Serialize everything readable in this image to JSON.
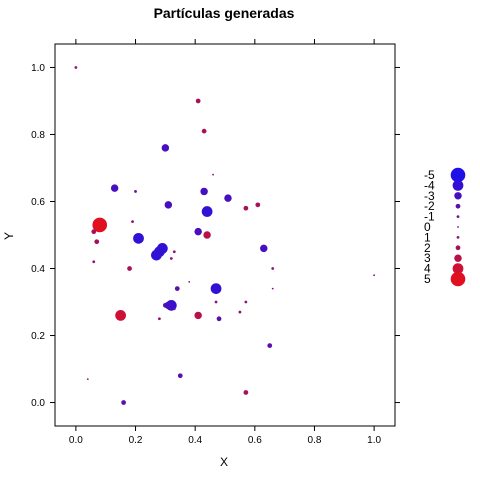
{
  "chart_data": {
    "type": "scatter",
    "title": "Partículas generadas",
    "xlabel": "X",
    "ylabel": "Y",
    "xlim": [
      -0.07,
      1.07
    ],
    "ylim": [
      -0.07,
      1.07
    ],
    "x_ticks": [
      0.0,
      0.2,
      0.4,
      0.6,
      0.8,
      1.0
    ],
    "y_ticks": [
      0.0,
      0.2,
      0.4,
      0.6,
      0.8,
      1.0
    ],
    "tick_labels": [
      "0.0",
      "0.2",
      "0.4",
      "0.6",
      "0.8",
      "1.0"
    ],
    "grid": false,
    "legend_position": "right",
    "color_low": "#1f10e8",
    "color_high": "#e01020",
    "legend": [
      {
        "label": "-5",
        "value": -5
      },
      {
        "label": "-4",
        "value": -4
      },
      {
        "label": "-3",
        "value": -3
      },
      {
        "label": "-2",
        "value": -2
      },
      {
        "label": "-1",
        "value": -1
      },
      {
        "label": "0",
        "value": 0
      },
      {
        "label": "1",
        "value": 1
      },
      {
        "label": "2",
        "value": 2
      },
      {
        "label": "3",
        "value": 3
      },
      {
        "label": "4",
        "value": 4
      },
      {
        "label": "5",
        "value": 5
      }
    ],
    "points": [
      {
        "x": 0.0,
        "y": 1.0,
        "v": 1
      },
      {
        "x": 0.41,
        "y": 0.9,
        "v": 2
      },
      {
        "x": 0.43,
        "y": 0.81,
        "v": 2
      },
      {
        "x": 0.3,
        "y": 0.76,
        "v": -3
      },
      {
        "x": 0.46,
        "y": 0.68,
        "v": 0
      },
      {
        "x": 0.13,
        "y": 0.64,
        "v": -3
      },
      {
        "x": 0.2,
        "y": 0.63,
        "v": -1
      },
      {
        "x": 0.43,
        "y": 0.63,
        "v": -3
      },
      {
        "x": 0.51,
        "y": 0.61,
        "v": -3
      },
      {
        "x": 0.31,
        "y": 0.59,
        "v": -3
      },
      {
        "x": 0.57,
        "y": 0.58,
        "v": 2
      },
      {
        "x": 0.61,
        "y": 0.59,
        "v": 2
      },
      {
        "x": 0.44,
        "y": 0.57,
        "v": -4
      },
      {
        "x": 0.19,
        "y": 0.54,
        "v": 1
      },
      {
        "x": 0.08,
        "y": 0.53,
        "v": 5
      },
      {
        "x": 0.06,
        "y": 0.51,
        "v": 2
      },
      {
        "x": 0.41,
        "y": 0.51,
        "v": -3
      },
      {
        "x": 0.21,
        "y": 0.49,
        "v": -4
      },
      {
        "x": 0.44,
        "y": 0.5,
        "v": 3
      },
      {
        "x": 0.07,
        "y": 0.48,
        "v": 2
      },
      {
        "x": 0.29,
        "y": 0.46,
        "v": -4
      },
      {
        "x": 0.28,
        "y": 0.45,
        "v": -4
      },
      {
        "x": 0.27,
        "y": 0.44,
        "v": -4
      },
      {
        "x": 0.33,
        "y": 0.45,
        "v": 1
      },
      {
        "x": 0.63,
        "y": 0.46,
        "v": -3
      },
      {
        "x": 0.32,
        "y": 0.43,
        "v": 1
      },
      {
        "x": 0.06,
        "y": 0.42,
        "v": 1
      },
      {
        "x": 0.18,
        "y": 0.4,
        "v": 2
      },
      {
        "x": 0.66,
        "y": 0.4,
        "v": 1
      },
      {
        "x": 1.0,
        "y": 0.38,
        "v": 0
      },
      {
        "x": 0.38,
        "y": 0.36,
        "v": 0
      },
      {
        "x": 0.34,
        "y": 0.34,
        "v": -2
      },
      {
        "x": 0.47,
        "y": 0.34,
        "v": -4
      },
      {
        "x": 0.66,
        "y": 0.34,
        "v": 0
      },
      {
        "x": 0.47,
        "y": 0.3,
        "v": 1
      },
      {
        "x": 0.57,
        "y": 0.3,
        "v": 1
      },
      {
        "x": 0.3,
        "y": 0.29,
        "v": -2
      },
      {
        "x": 0.32,
        "y": 0.29,
        "v": -4
      },
      {
        "x": 0.31,
        "y": 0.29,
        "v": -3
      },
      {
        "x": 0.33,
        "y": 0.28,
        "v": -1
      },
      {
        "x": 0.55,
        "y": 0.27,
        "v": 1
      },
      {
        "x": 0.15,
        "y": 0.26,
        "v": 4
      },
      {
        "x": 0.28,
        "y": 0.25,
        "v": 1
      },
      {
        "x": 0.41,
        "y": 0.26,
        "v": 3
      },
      {
        "x": 0.48,
        "y": 0.25,
        "v": -2
      },
      {
        "x": 0.65,
        "y": 0.17,
        "v": -2
      },
      {
        "x": 0.35,
        "y": 0.08,
        "v": -2
      },
      {
        "x": 0.04,
        "y": 0.07,
        "v": 0
      },
      {
        "x": 0.57,
        "y": 0.03,
        "v": 2
      },
      {
        "x": 0.16,
        "y": 0.0,
        "v": -2
      }
    ]
  }
}
